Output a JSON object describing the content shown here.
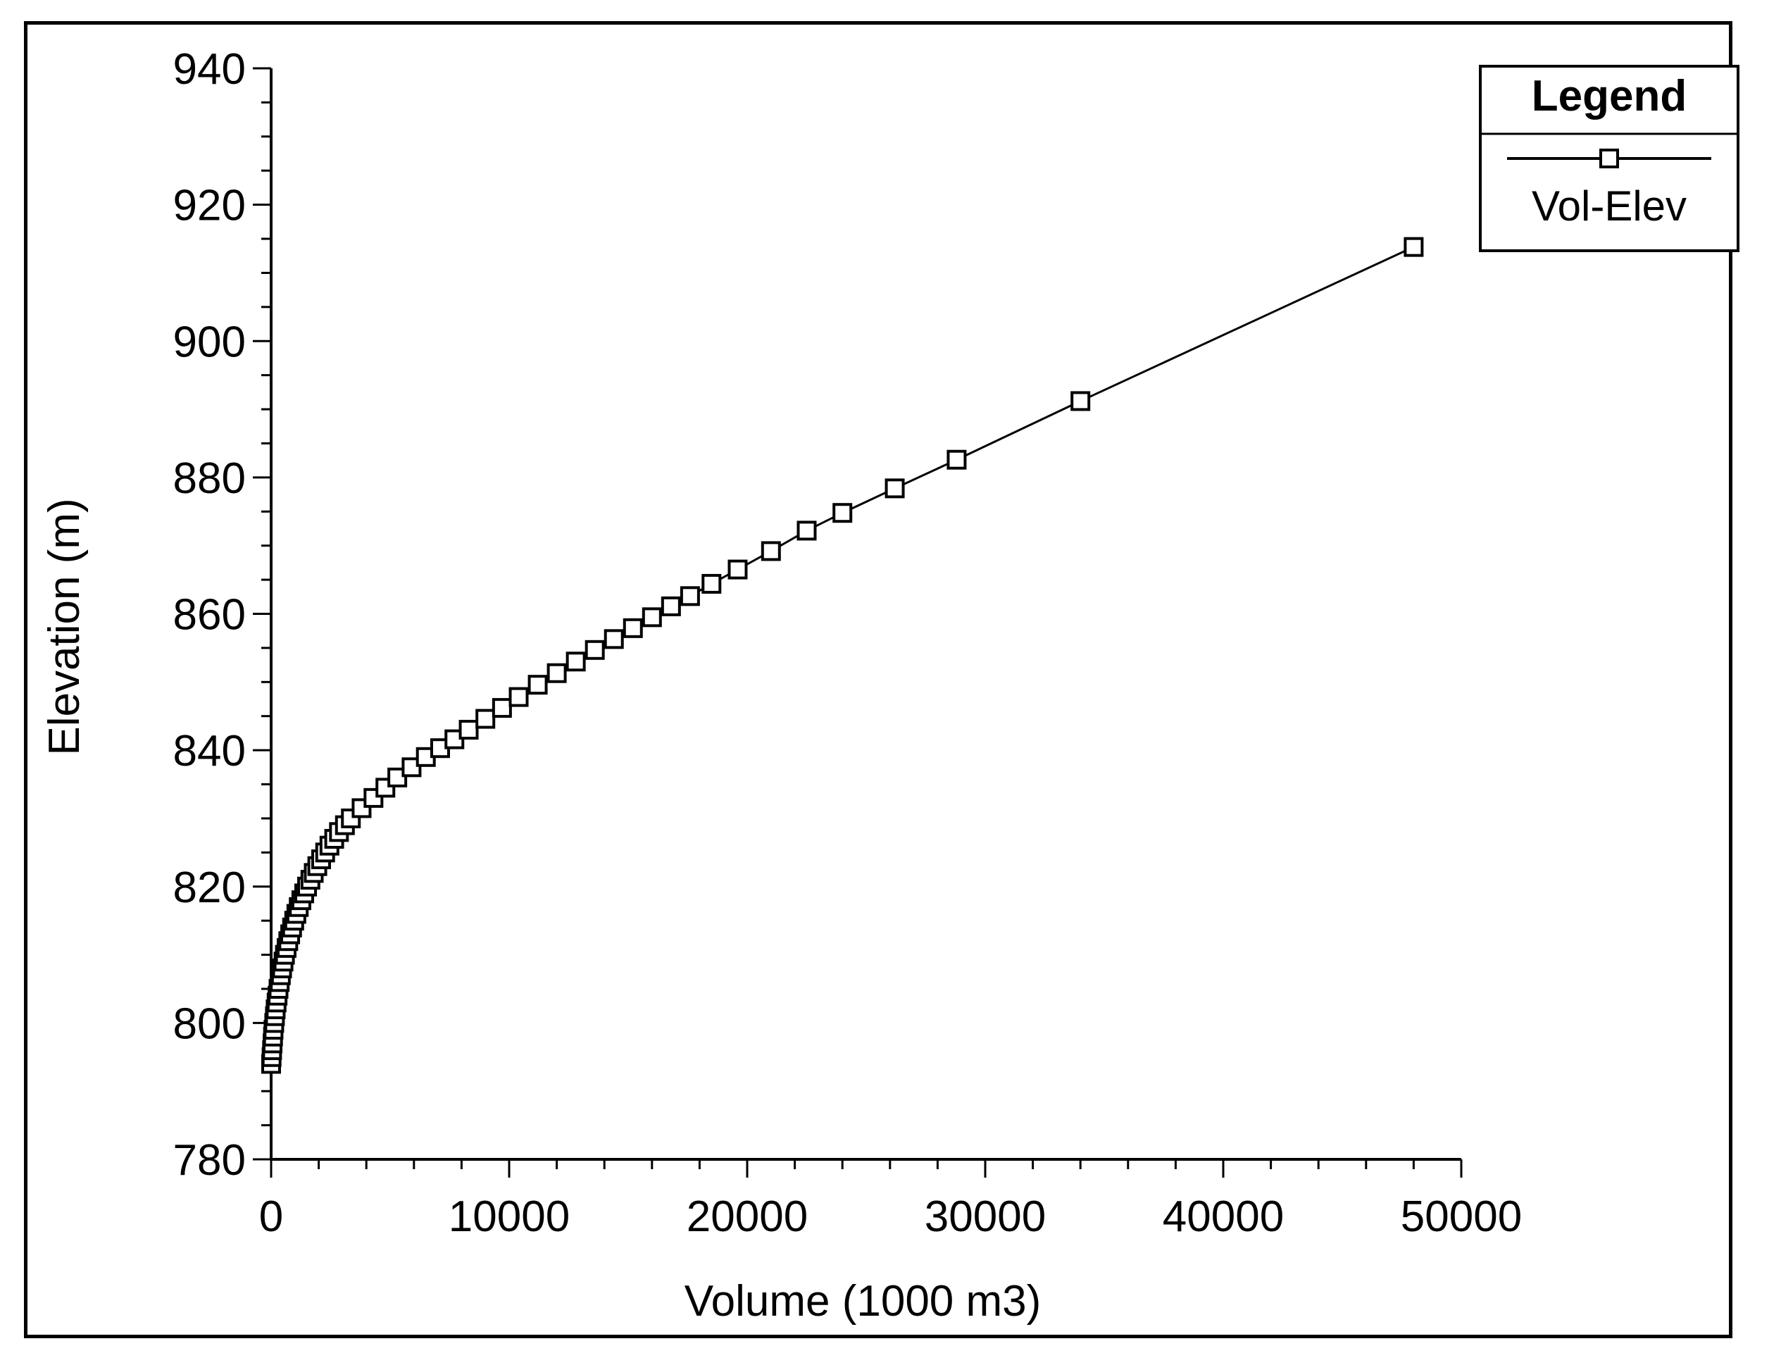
{
  "chart_data": {
    "type": "line",
    "xlabel": "Volume (1000 m3)",
    "ylabel": "Elevation (m)",
    "xlim": [
      0,
      50000
    ],
    "ylim": [
      780,
      940
    ],
    "xticks": [
      0,
      10000,
      20000,
      30000,
      40000,
      50000
    ],
    "yticks": [
      780,
      800,
      820,
      840,
      860,
      880,
      900,
      920,
      940
    ],
    "xtick_labels": [
      "0",
      "10000",
      "20000",
      "30000",
      "40000",
      "50000"
    ],
    "ytick_labels": [
      "780",
      "800",
      "820",
      "840",
      "860",
      "880",
      "900",
      "920",
      "940"
    ],
    "grid": false,
    "legend": {
      "title": "Legend",
      "placement": "top-right"
    },
    "series": [
      {
        "name": "Vol-Elev",
        "color": "#000000",
        "marker": "square",
        "points": [
          [
            0,
            794
          ],
          [
            20,
            795
          ],
          [
            40,
            796
          ],
          [
            60,
            797
          ],
          [
            80,
            798
          ],
          [
            100,
            799
          ],
          [
            130,
            800
          ],
          [
            160,
            801
          ],
          [
            190,
            802
          ],
          [
            230,
            803
          ],
          [
            270,
            804
          ],
          [
            310,
            805
          ],
          [
            360,
            806
          ],
          [
            410,
            807
          ],
          [
            460,
            808
          ],
          [
            520,
            809
          ],
          [
            580,
            810
          ],
          [
            650,
            811
          ],
          [
            720,
            812
          ],
          [
            800,
            813
          ],
          [
            880,
            814
          ],
          [
            970,
            815
          ],
          [
            1060,
            816
          ],
          [
            1160,
            817
          ],
          [
            1270,
            818
          ],
          [
            1390,
            819
          ],
          [
            1510,
            820
          ],
          [
            1650,
            821
          ],
          [
            1790,
            822
          ],
          [
            1940,
            823
          ],
          [
            2100,
            824
          ],
          [
            2270,
            825
          ],
          [
            2450,
            826
          ],
          [
            2650,
            827
          ],
          [
            2850,
            828
          ],
          [
            3100,
            829
          ],
          [
            3350,
            830
          ],
          [
            3800,
            831.5
          ],
          [
            4300,
            833
          ],
          [
            4800,
            834.5
          ],
          [
            5300,
            836
          ],
          [
            5900,
            837.5
          ],
          [
            6500,
            839
          ],
          [
            7100,
            840.3
          ],
          [
            7700,
            841.6
          ],
          [
            8300,
            843
          ],
          [
            9000,
            844.6
          ],
          [
            9700,
            846.2
          ],
          [
            10400,
            847.8
          ],
          [
            11200,
            849.6
          ],
          [
            12000,
            851.3
          ],
          [
            12800,
            853
          ],
          [
            13600,
            854.7
          ],
          [
            14400,
            856.3
          ],
          [
            15200,
            857.9
          ],
          [
            16000,
            859.5
          ],
          [
            16800,
            861.1
          ],
          [
            17600,
            862.6
          ],
          [
            18500,
            864.4
          ],
          [
            19600,
            866.5
          ],
          [
            21000,
            869.2
          ],
          [
            22500,
            872.2
          ],
          [
            24000,
            874.8
          ],
          [
            26200,
            878.4
          ],
          [
            28800,
            882.6
          ],
          [
            34000,
            891.2
          ],
          [
            48000,
            913.8
          ]
        ]
      }
    ]
  }
}
